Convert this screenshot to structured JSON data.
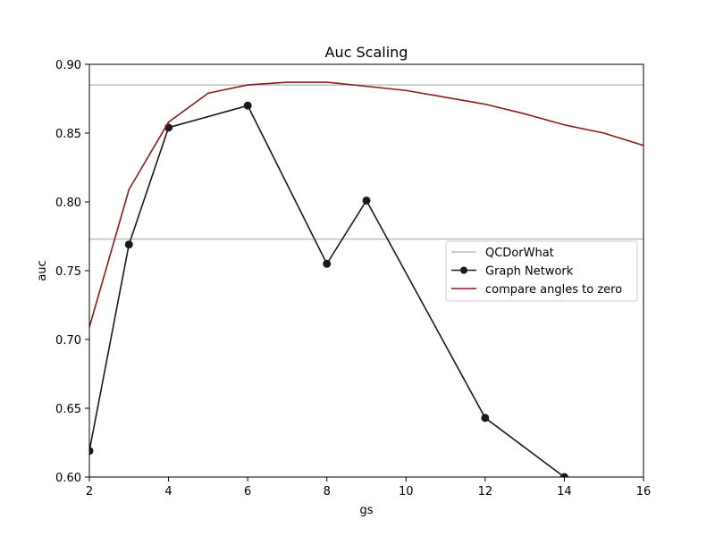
{
  "chart_data": {
    "type": "line",
    "title": "Auc Scaling",
    "xlabel": "gs",
    "ylabel": "auc",
    "xlim": [
      2,
      16
    ],
    "ylim": [
      0.6,
      0.9
    ],
    "xticks": [
      2,
      4,
      6,
      8,
      10,
      12,
      14,
      16
    ],
    "xtick_labels": [
      "2",
      "4",
      "6",
      "8",
      "10",
      "12",
      "14",
      "16"
    ],
    "yticks": [
      0.6,
      0.65,
      0.7,
      0.75,
      0.8,
      0.85,
      0.9
    ],
    "ytick_labels": [
      "0.60",
      "0.65",
      "0.70",
      "0.75",
      "0.80",
      "0.85",
      "0.90"
    ],
    "grid": false,
    "legend_position": "center-right",
    "reference_lines": [
      {
        "name": "QCDorWhat",
        "values": [
          0.885,
          0.773
        ],
        "color": "#bfbfbf"
      }
    ],
    "series": [
      {
        "name": "Graph Network",
        "color": "#1a1a1a",
        "marker": "circle",
        "x": [
          2,
          3,
          4,
          6,
          8,
          9,
          12,
          14
        ],
        "y": [
          0.619,
          0.769,
          0.854,
          0.87,
          0.755,
          0.801,
          0.643,
          0.6
        ]
      },
      {
        "name": "compare angles to zero",
        "color": "#8b1a1a",
        "marker": "none",
        "x": [
          2,
          3,
          4,
          5,
          6,
          7,
          8,
          9,
          10,
          11,
          12,
          13,
          14,
          15,
          16
        ],
        "y": [
          0.709,
          0.809,
          0.858,
          0.879,
          0.885,
          0.887,
          0.887,
          0.884,
          0.881,
          0.876,
          0.871,
          0.864,
          0.856,
          0.85,
          0.841
        ]
      }
    ],
    "legend": [
      "QCDorWhat",
      "Graph Network",
      "compare angles to zero"
    ]
  }
}
